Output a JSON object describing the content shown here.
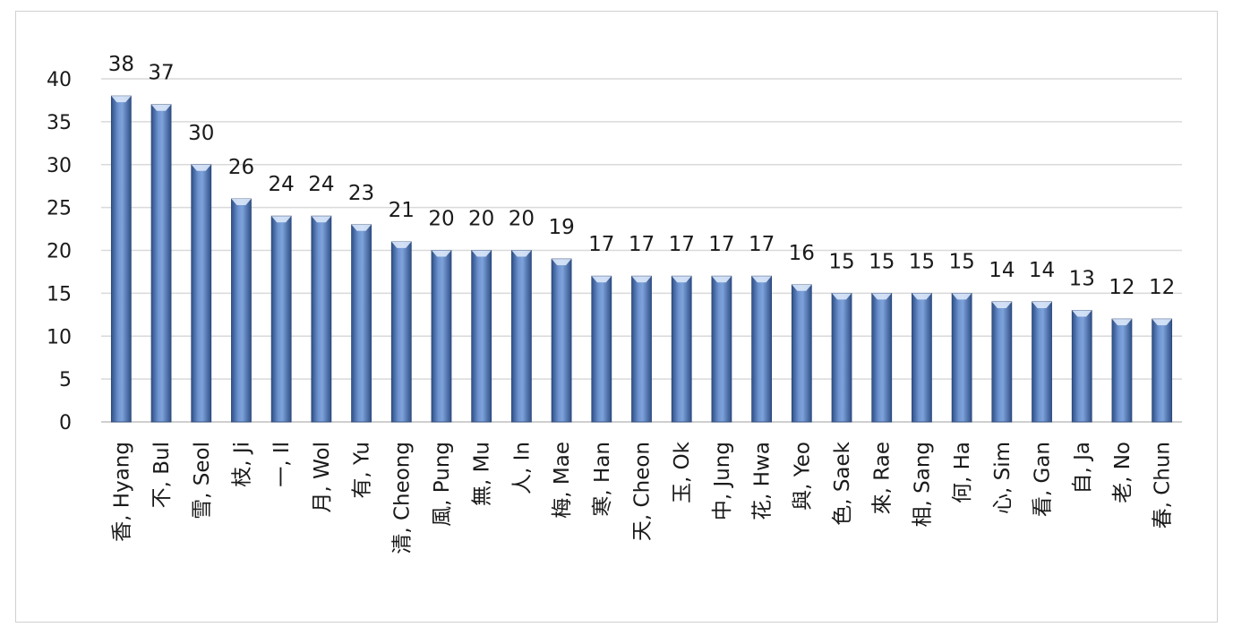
{
  "chart_data": {
    "type": "bar",
    "title": "",
    "xlabel": "",
    "ylabel": "",
    "ylim": [
      0,
      40
    ],
    "yticks": [
      0,
      5,
      10,
      15,
      20,
      25,
      30,
      35,
      40
    ],
    "grid": true,
    "legend": "none",
    "colors": {
      "bar_top": "#aac4ea",
      "bar_mid": "#5e83bf",
      "bar_bottom": "#2f4f87",
      "bar_edge": "#2b4775",
      "cap": "#dbe8fa"
    },
    "categories": [
      "香, Hyang",
      "不, Bul",
      "雪, Seol",
      "枝, Ji",
      "一, Il",
      "月, Wol",
      "有, Yu",
      "清, Cheong",
      "風, Pung",
      "無, Mu",
      "人, In",
      "梅, Mae",
      "寒, Han",
      "天, Cheon",
      "玉, Ok",
      "中, Jung",
      "花, Hwa",
      "與, Yeo",
      "色, Saek",
      "來, Rae",
      "相, Sang",
      "何, Ha",
      "心, Sim",
      "看, Gan",
      "自, Ja",
      "老, No",
      "春, Chun"
    ],
    "values": [
      38,
      37,
      30,
      26,
      24,
      24,
      23,
      21,
      20,
      20,
      20,
      19,
      17,
      17,
      17,
      17,
      17,
      16,
      15,
      15,
      15,
      15,
      14,
      14,
      13,
      12,
      12
    ]
  }
}
